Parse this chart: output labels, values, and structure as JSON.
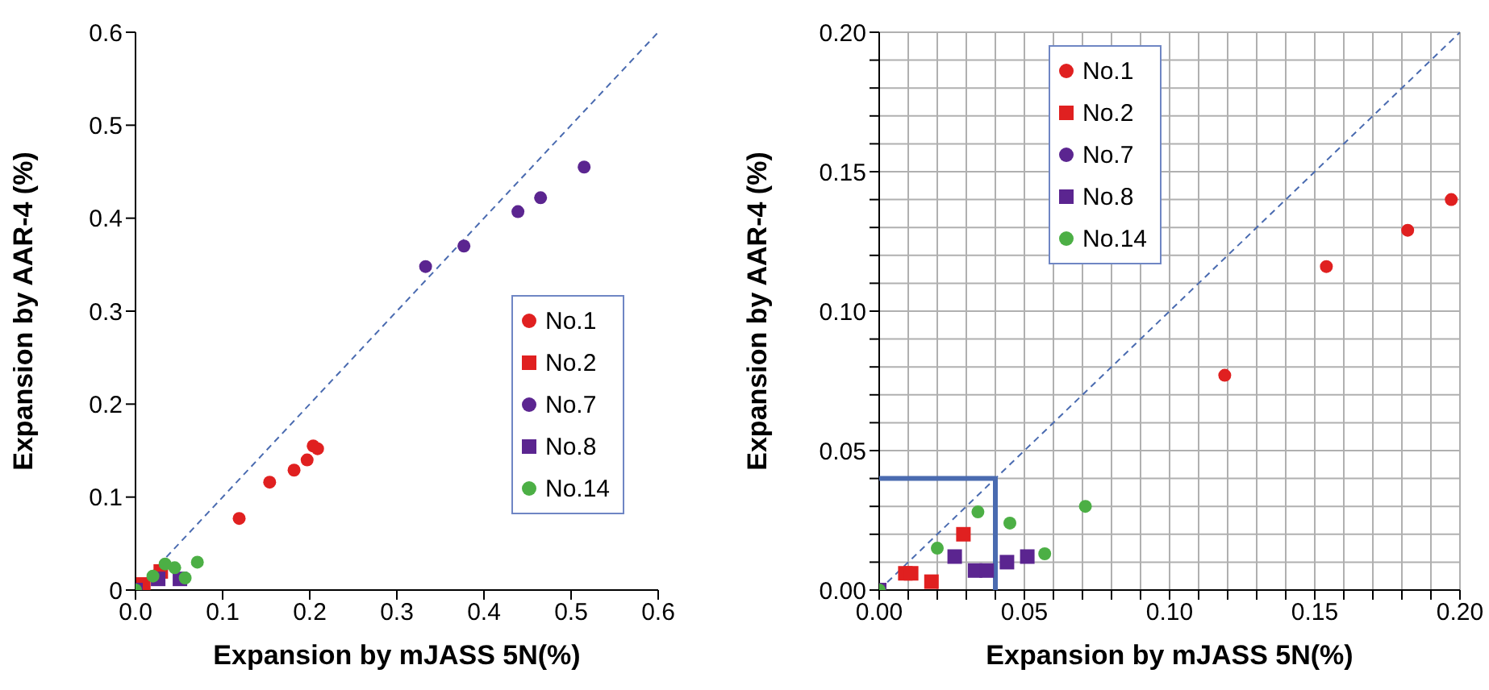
{
  "chart_data": [
    {
      "type": "scatter",
      "xlabel": "Expansion by mJASS 5N(%)",
      "ylabel": "Expansion by AAR-4 (%)",
      "xlim": [
        0,
        0.6
      ],
      "ylim": [
        0,
        0.6
      ],
      "xticks": [
        {
          "value": 0,
          "label": "0.0"
        },
        {
          "value": 0.1,
          "label": "0.1"
        },
        {
          "value": 0.2,
          "label": "0.2"
        },
        {
          "value": 0.3,
          "label": "0.3"
        },
        {
          "value": 0.4,
          "label": "0.4"
        },
        {
          "value": 0.5,
          "label": "0.5"
        },
        {
          "value": 0.6,
          "label": "0.6"
        }
      ],
      "yticks": [
        0,
        {
          "value": 0.1,
          "label": "0.1"
        },
        {
          "value": 0.2,
          "label": "0.2"
        },
        {
          "value": 0.3,
          "label": "0.3"
        },
        {
          "value": 0.4,
          "label": "0.4"
        },
        {
          "value": 0.5,
          "label": "0.5"
        },
        {
          "value": 0.6,
          "label": "0.6"
        }
      ],
      "grid": false,
      "legend": "bottom right",
      "series": [
        {
          "type": "line",
          "color": "#4a6bb0",
          "line_style": "dashed",
          "marker": "none",
          "x": [
            0,
            0.6
          ],
          "values": [
            0,
            0.6
          ]
        },
        {
          "name": "No.1",
          "color": "#e02020",
          "marker": "circle",
          "x": [
            0.119,
            0.154,
            0.182,
            0.197,
            0.204,
            0.209
          ],
          "values": [
            0.077,
            0.116,
            0.129,
            0.14,
            0.155,
            0.152
          ]
        },
        {
          "name": "No.2",
          "color": "#e02020",
          "marker": "square",
          "x": [
            0.009,
            0.029
          ],
          "values": [
            0.006,
            0.02
          ]
        },
        {
          "name": "No.7",
          "color": "#5b2590",
          "marker": "circle",
          "x": [
            0.333,
            0.377,
            0.439,
            0.465,
            0.515
          ],
          "values": [
            0.348,
            0.37,
            0.407,
            0.422,
            0.455
          ]
        },
        {
          "name": "No.8",
          "color": "#5b2590",
          "marker": "square",
          "x": [
            0,
            0.026,
            0.051
          ],
          "values": [
            0,
            0.012,
            0.012
          ]
        },
        {
          "name": "No.14",
          "color": "#4caf45",
          "marker": "circle",
          "x": [
            0,
            0.02,
            0.034,
            0.045,
            0.057,
            0.071
          ],
          "values": [
            0,
            0.015,
            0.028,
            0.024,
            0.013,
            0.03
          ]
        }
      ]
    },
    {
      "type": "scatter",
      "xlabel": "Expansion by mJASS 5N(%)",
      "ylabel": "Expansion by AAR-4 (%)",
      "xlim": [
        0,
        0.2
      ],
      "ylim": [
        0,
        0.2
      ],
      "xticks": [
        {
          "value": 0,
          "label": "0.00"
        },
        {
          "value": 0.01,
          "label": null
        },
        {
          "value": 0.02,
          "label": null
        },
        {
          "value": 0.03,
          "label": null
        },
        {
          "value": 0.04,
          "label": null
        },
        {
          "value": 0.05,
          "label": "0.05"
        },
        {
          "value": 0.06,
          "label": null
        },
        {
          "value": 0.07,
          "label": null
        },
        {
          "value": 0.08,
          "label": null
        },
        {
          "value": 0.09,
          "label": null
        },
        {
          "value": 0.1,
          "label": "0.10"
        },
        {
          "value": 0.11,
          "label": null
        },
        {
          "value": 0.12,
          "label": null
        },
        {
          "value": 0.13,
          "label": null
        },
        {
          "value": 0.14,
          "label": null
        },
        {
          "value": 0.15,
          "label": "0.15"
        },
        {
          "value": 0.16,
          "label": null
        },
        {
          "value": 0.17,
          "label": null
        },
        {
          "value": 0.18,
          "label": null
        },
        {
          "value": 0.19,
          "label": null
        },
        {
          "value": 0.2,
          "label": "0.20"
        }
      ],
      "yticks": [
        {
          "value": 0,
          "label": "0.00"
        },
        {
          "value": 0.01,
          "label": null
        },
        {
          "value": 0.02,
          "label": null
        },
        {
          "value": 0.03,
          "label": null
        },
        {
          "value": 0.04,
          "label": null
        },
        {
          "value": 0.05,
          "label": "0.05"
        },
        {
          "value": 0.06,
          "label": null
        },
        {
          "value": 0.07,
          "label": null
        },
        {
          "value": 0.08,
          "label": null
        },
        {
          "value": 0.09,
          "label": null
        },
        {
          "value": 0.1,
          "label": "0.10"
        },
        {
          "value": 0.11,
          "label": null
        },
        {
          "value": 0.12,
          "label": null
        },
        {
          "value": 0.13,
          "label": null
        },
        {
          "value": 0.14,
          "label": null
        },
        {
          "value": 0.15,
          "label": "0.15"
        },
        {
          "value": 0.16,
          "label": null
        },
        {
          "value": 0.17,
          "label": null
        },
        {
          "value": 0.18,
          "label": null
        },
        {
          "value": 0.19,
          "label": null
        },
        {
          "value": 0.2,
          "label": "0.20"
        }
      ],
      "grid": true,
      "legend": "top left",
      "series": [
        {
          "type": "line",
          "color": "#4a6bb0",
          "line_style": "dashed",
          "marker": "none",
          "x": [
            0,
            0.2
          ],
          "values": [
            0,
            0.2
          ]
        },
        {
          "type": "line",
          "color": "#4a6bb0",
          "line_style": "solid",
          "marker": "none",
          "x": [
            0,
            0.04,
            0.04
          ],
          "values": [
            0.04,
            0.04,
            0
          ]
        },
        {
          "name": "No.1",
          "color": "#e02020",
          "marker": "circle",
          "x": [
            0.119,
            0.154,
            0.182,
            0.197
          ],
          "values": [
            0.077,
            0.116,
            0.129,
            0.14
          ]
        },
        {
          "name": "No.2",
          "color": "#e02020",
          "marker": "square",
          "x": [
            0.009,
            0.011,
            0.018,
            0.029
          ],
          "values": [
            0.006,
            0.006,
            0.003,
            0.02
          ]
        },
        {
          "name": "No.7",
          "color": "#5b2590",
          "marker": "circle"
        },
        {
          "name": "No.8",
          "color": "#5b2590",
          "marker": "square",
          "x": [
            0,
            0.026,
            0.033,
            0.037,
            0.044,
            0.051
          ],
          "values": [
            0,
            0.012,
            0.007,
            0.007,
            0.01,
            0.012
          ]
        },
        {
          "name": "No.14",
          "color": "#4caf45",
          "marker": "circle",
          "x": [
            0,
            0.02,
            0.034,
            0.045,
            0.057,
            0.071
          ],
          "values": [
            0,
            0.015,
            0.028,
            0.024,
            0.013,
            0.03
          ]
        }
      ]
    }
  ]
}
